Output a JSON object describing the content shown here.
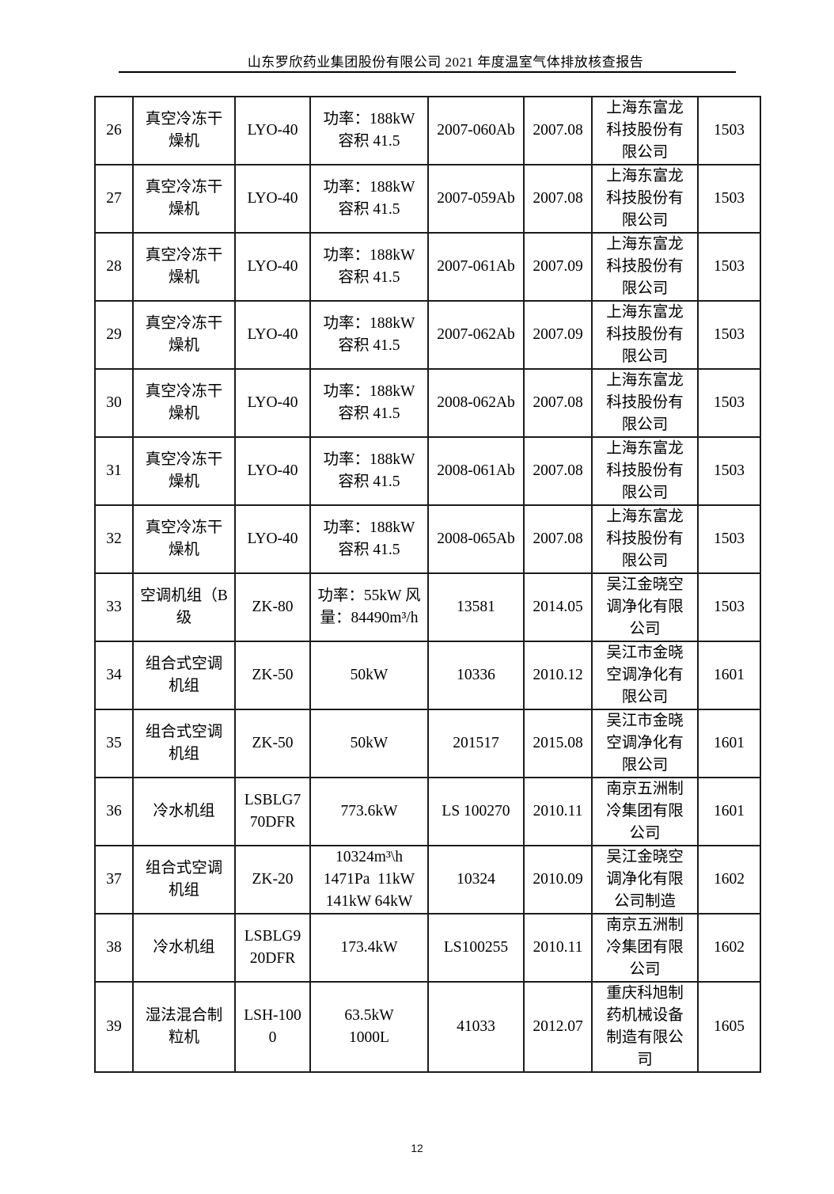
{
  "header": {
    "title": "山东罗欣药业集团股份有限公司 2021 年度温室气体排放核查报告"
  },
  "table": {
    "rows": [
      {
        "no": "26",
        "name": "真空冷冻干\n燥机",
        "model": "LYO-40",
        "specs": "功率：188kW\n容积 41.5",
        "serial": "2007-060Ab",
        "date": "2007.08",
        "maker": "上海东富龙\n科技股份有\n限公司",
        "code": "1503"
      },
      {
        "no": "27",
        "name": "真空冷冻干\n燥机",
        "model": "LYO-40",
        "specs": "功率：188kW\n容积 41.5",
        "serial": "2007-059Ab",
        "date": "2007.08",
        "maker": "上海东富龙\n科技股份有\n限公司",
        "code": "1503"
      },
      {
        "no": "28",
        "name": "真空冷冻干\n燥机",
        "model": "LYO-40",
        "specs": "功率：188kW\n容积 41.5",
        "serial": "2007-061Ab",
        "date": "2007.09",
        "maker": "上海东富龙\n科技股份有\n限公司",
        "code": "1503"
      },
      {
        "no": "29",
        "name": "真空冷冻干\n燥机",
        "model": "LYO-40",
        "specs": "功率：188kW\n容积 41.5",
        "serial": "2007-062Ab",
        "date": "2007.09",
        "maker": "上海东富龙\n科技股份有\n限公司",
        "code": "1503"
      },
      {
        "no": "30",
        "name": "真空冷冻干\n燥机",
        "model": "LYO-40",
        "specs": "功率：188kW\n容积 41.5",
        "serial": "2008-062Ab",
        "date": "2007.08",
        "maker": "上海东富龙\n科技股份有\n限公司",
        "code": "1503"
      },
      {
        "no": "31",
        "name": "真空冷冻干\n燥机",
        "model": "LYO-40",
        "specs": "功率：188kW\n容积 41.5",
        "serial": "2008-061Ab",
        "date": "2007.08",
        "maker": "上海东富龙\n科技股份有\n限公司",
        "code": "1503"
      },
      {
        "no": "32",
        "name": "真空冷冻干\n燥机",
        "model": "LYO-40",
        "specs": "功率：188kW\n容积 41.5",
        "serial": "2008-065Ab",
        "date": "2007.08",
        "maker": "上海东富龙\n科技股份有\n限公司",
        "code": "1503"
      },
      {
        "no": "33",
        "name": "空调机组（B\n级",
        "model": "ZK-80",
        "specs": "功率：55kW 风\n量：84490m³/h",
        "serial": "13581",
        "date": "2014.05",
        "maker": "吴江金晓空\n调净化有限\n公司",
        "code": "1503"
      },
      {
        "no": "34",
        "name": "组合式空调\n机组",
        "model": "ZK-50",
        "specs": "50kW",
        "serial": "10336",
        "date": "2010.12",
        "maker": "吴江市金晓\n空调净化有\n限公司",
        "code": "1601"
      },
      {
        "no": "35",
        "name": "组合式空调\n机组",
        "model": "ZK-50",
        "specs": "50kW",
        "serial": "201517",
        "date": "2015.08",
        "maker": "吴江市金晓\n空调净化有\n限公司",
        "code": "1601"
      },
      {
        "no": "36",
        "name": "冷水机组",
        "model": "LSBLG7\n70DFR",
        "specs": "773.6kW",
        "serial": "LS 100270",
        "date": "2010.11",
        "maker": "南京五洲制\n冷集团有限\n公司",
        "code": "1601"
      },
      {
        "no": "37",
        "name": "组合式空调\n机组",
        "model": "ZK-20",
        "specs": "10324m³\\h\n1471Pa  11kW\n141kW 64kW",
        "serial": "10324",
        "date": "2010.09",
        "maker": "吴江金晓空\n调净化有限\n公司制造",
        "code": "1602"
      },
      {
        "no": "38",
        "name": "冷水机组",
        "model": "LSBLG9\n20DFR",
        "specs": "173.4kW",
        "serial": "LS100255",
        "date": "2010.11",
        "maker": "南京五洲制\n冷集团有限\n公司",
        "code": "1602"
      },
      {
        "no": "39",
        "name": "湿法混合制\n粒机",
        "model": "LSH-100\n0",
        "specs": "63.5kW\n1000L",
        "serial": "41033",
        "date": "2012.07",
        "maker": "重庆科旭制\n药机械设备\n制造有限公\n司",
        "code": "1605"
      }
    ]
  },
  "footer": {
    "page_number": "12"
  }
}
